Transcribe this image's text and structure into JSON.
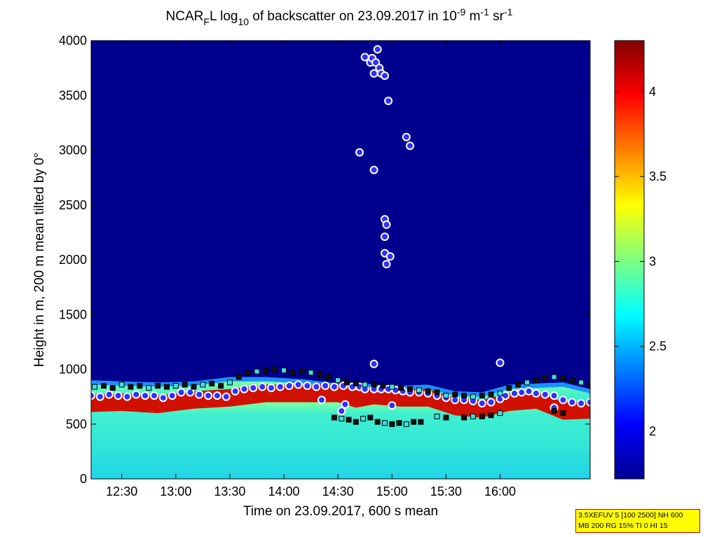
{
  "title": {
    "pre": "NCAR",
    "sub1": "F",
    "mid": "L log",
    "sub2": "10",
    "post": " of backscatter on 23.09.2017 in 10",
    "sup1": "-9",
    "unit1": " m",
    "sup2": "-1",
    "unit2": " sr",
    "sup3": "-1"
  },
  "chart_data": {
    "type": "heatmap",
    "xlabel": "Time on 23.09.2017, 600 s mean",
    "ylabel": "Height in m, 200 m mean tilted by 0°",
    "x_ticks": [
      "12:30",
      "13:00",
      "13:30",
      "14:00",
      "14:30",
      "15:00",
      "15:30",
      "16:00"
    ],
    "x_tick_minutes": [
      750,
      780,
      810,
      840,
      870,
      900,
      930,
      960
    ],
    "xlim_minutes": [
      733,
      1010
    ],
    "y_ticks": [
      "0",
      "500",
      "1000",
      "1500",
      "2000",
      "2500",
      "3000",
      "3500",
      "4000"
    ],
    "y_tick_values": [
      0,
      500,
      1000,
      1500,
      2000,
      2500,
      3000,
      3500,
      4000
    ],
    "ylim": [
      0,
      4000
    ],
    "colorbar": {
      "ticks": [
        "2",
        "2.5",
        "3",
        "3.5",
        "4"
      ],
      "tick_values": [
        2,
        2.5,
        3,
        3.5,
        4
      ],
      "range": [
        1.72,
        4.3
      ],
      "colormap": "jet"
    },
    "layers": {
      "background_value": 1.75,
      "mixed_layer_bottom_value": 2.75,
      "boundary_layer_top_profile": {
        "minutes": [
          733,
          750,
          770,
          790,
          810,
          830,
          850,
          870,
          880,
          890,
          905,
          920,
          935,
          950,
          965,
          980,
          995,
          1010
        ],
        "heights": [
          900,
          890,
          880,
          890,
          930,
          930,
          910,
          870,
          880,
          860,
          850,
          860,
          800,
          790,
          860,
          870,
          880,
          820
        ]
      },
      "red_band_profile": {
        "minutes": [
          733,
          750,
          770,
          790,
          810,
          830,
          850,
          870,
          880,
          890,
          905,
          920,
          935,
          950,
          965,
          980,
          995,
          1010
        ],
        "heights": [
          750,
          760,
          740,
          780,
          800,
          840,
          840,
          840,
          790,
          820,
          800,
          800,
          720,
          700,
          760,
          780,
          680,
          690
        ]
      }
    },
    "series": [
      {
        "marker": "circle",
        "points": [
          [
            733,
            760
          ],
          [
            738,
            750
          ],
          [
            743,
            770
          ],
          [
            748,
            760
          ],
          [
            753,
            750
          ],
          [
            758,
            770
          ],
          [
            763,
            760
          ],
          [
            768,
            760
          ],
          [
            773,
            740
          ],
          [
            778,
            760
          ],
          [
            783,
            790
          ],
          [
            788,
            790
          ],
          [
            793,
            770
          ],
          [
            798,
            760
          ],
          [
            803,
            760
          ],
          [
            808,
            750
          ],
          [
            813,
            800
          ],
          [
            818,
            820
          ],
          [
            823,
            830
          ],
          [
            828,
            840
          ],
          [
            833,
            830
          ],
          [
            838,
            840
          ],
          [
            843,
            850
          ],
          [
            848,
            860
          ],
          [
            853,
            850
          ],
          [
            858,
            840
          ],
          [
            863,
            850
          ],
          [
            868,
            840
          ],
          [
            873,
            850
          ],
          [
            878,
            840
          ],
          [
            882,
            840
          ],
          [
            885,
            820
          ],
          [
            890,
            820
          ],
          [
            894,
            820
          ],
          [
            898,
            820
          ],
          [
            902,
            810
          ],
          [
            906,
            800
          ],
          [
            910,
            790
          ],
          [
            915,
            790
          ],
          [
            920,
            780
          ],
          [
            925,
            760
          ],
          [
            930,
            740
          ],
          [
            935,
            720
          ],
          [
            940,
            720
          ],
          [
            945,
            710
          ],
          [
            950,
            690
          ],
          [
            955,
            700
          ],
          [
            960,
            730
          ],
          [
            963,
            760
          ],
          [
            968,
            780
          ],
          [
            972,
            790
          ],
          [
            976,
            800
          ],
          [
            980,
            780
          ],
          [
            985,
            770
          ],
          [
            990,
            760
          ],
          [
            995,
            720
          ],
          [
            1000,
            700
          ],
          [
            1005,
            690
          ],
          [
            1010,
            700
          ],
          [
            882,
            2980
          ],
          [
            885,
            3850
          ],
          [
            888,
            3800
          ],
          [
            889,
            3840
          ],
          [
            890,
            3700
          ],
          [
            891,
            3800
          ],
          [
            892,
            3920
          ],
          [
            893,
            3750
          ],
          [
            894,
            3700
          ],
          [
            896,
            3680
          ],
          [
            898,
            3450
          ],
          [
            890,
            2820
          ],
          [
            896,
            2370
          ],
          [
            897,
            2320
          ],
          [
            896,
            2210
          ],
          [
            896,
            2060
          ],
          [
            899,
            2030
          ],
          [
            897,
            1960
          ],
          [
            890,
            1050
          ],
          [
            900,
            670
          ],
          [
            908,
            3120
          ],
          [
            910,
            3040
          ],
          [
            874,
            680
          ],
          [
            872,
            620
          ],
          [
            861,
            720
          ],
          [
            960,
            1060
          ],
          [
            990,
            650
          ]
        ]
      },
      {
        "marker": "square",
        "points": [
          [
            735,
            840
          ],
          [
            740,
            850
          ],
          [
            745,
            830
          ],
          [
            750,
            860
          ],
          [
            755,
            840
          ],
          [
            760,
            850
          ],
          [
            765,
            830
          ],
          [
            770,
            850
          ],
          [
            775,
            840
          ],
          [
            780,
            850
          ],
          [
            785,
            860
          ],
          [
            790,
            840
          ],
          [
            795,
            860
          ],
          [
            800,
            870
          ],
          [
            805,
            850
          ],
          [
            810,
            880
          ],
          [
            815,
            930
          ],
          [
            820,
            970
          ],
          [
            825,
            980
          ],
          [
            830,
            990
          ],
          [
            835,
            1000
          ],
          [
            840,
            990
          ],
          [
            845,
            970
          ],
          [
            850,
            980
          ],
          [
            855,
            970
          ],
          [
            860,
            950
          ],
          [
            865,
            930
          ],
          [
            870,
            900
          ],
          [
            875,
            880
          ],
          [
            880,
            870
          ],
          [
            885,
            860
          ],
          [
            890,
            860
          ],
          [
            895,
            850
          ],
          [
            900,
            840
          ],
          [
            905,
            830
          ],
          [
            910,
            820
          ],
          [
            915,
            810
          ],
          [
            920,
            800
          ],
          [
            925,
            790
          ],
          [
            930,
            760
          ],
          [
            935,
            770
          ],
          [
            940,
            760
          ],
          [
            945,
            750
          ],
          [
            950,
            760
          ],
          [
            955,
            770
          ],
          [
            960,
            780
          ],
          [
            965,
            830
          ],
          [
            970,
            860
          ],
          [
            975,
            880
          ],
          [
            980,
            900
          ],
          [
            985,
            920
          ],
          [
            990,
            930
          ],
          [
            995,
            920
          ],
          [
            1000,
            900
          ],
          [
            1005,
            880
          ],
          [
            1010,
            860
          ],
          [
            868,
            560
          ],
          [
            872,
            550
          ],
          [
            876,
            540
          ],
          [
            880,
            520
          ],
          [
            884,
            550
          ],
          [
            888,
            560
          ],
          [
            892,
            520
          ],
          [
            896,
            510
          ],
          [
            900,
            500
          ],
          [
            904,
            510
          ],
          [
            908,
            500
          ],
          [
            912,
            520
          ],
          [
            916,
            520
          ],
          [
            925,
            570
          ],
          [
            930,
            560
          ],
          [
            940,
            560
          ],
          [
            945,
            570
          ],
          [
            950,
            570
          ],
          [
            955,
            580
          ],
          [
            960,
            600
          ],
          [
            990,
            620
          ],
          [
            995,
            600
          ]
        ]
      }
    ]
  },
  "info_box": {
    "line1": "3.5XEFUV 5 [100 2500] NH 600",
    "line2": "MB 200 RG 15% TI 0 HI 15"
  }
}
